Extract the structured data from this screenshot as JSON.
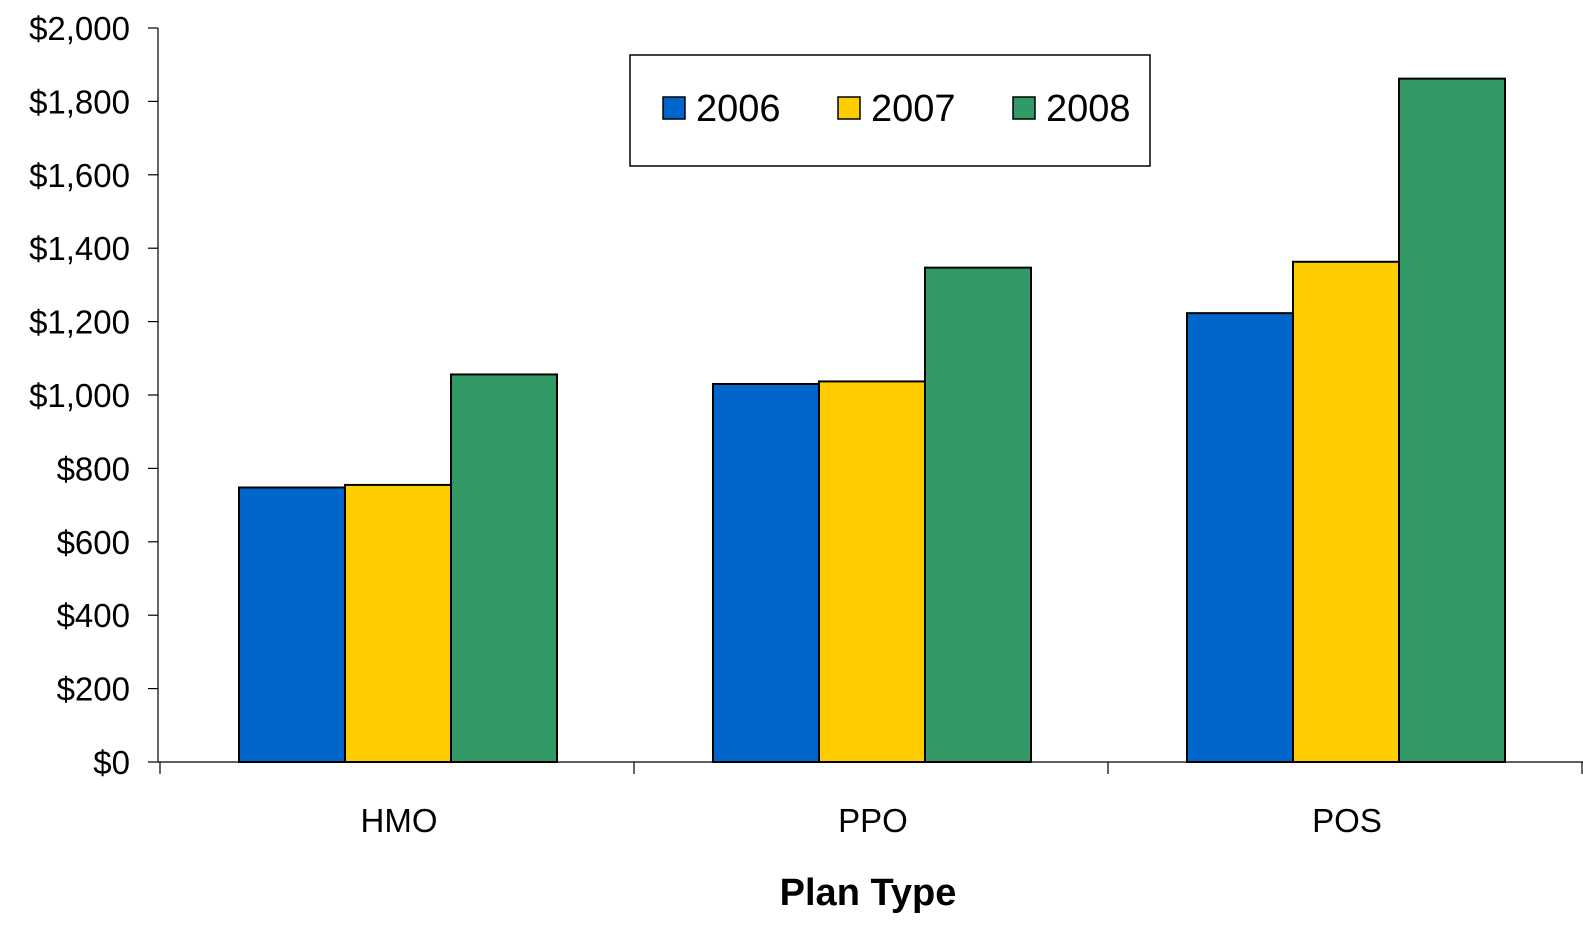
{
  "chart_data": {
    "type": "bar",
    "categories": [
      "HMO",
      "PPO",
      "POS"
    ],
    "series": [
      {
        "name": "2006",
        "color": "#0066CC",
        "values": [
          748,
          1030,
          1223
        ]
      },
      {
        "name": "2007",
        "color": "#FFCC00",
        "values": [
          755,
          1037,
          1363
        ]
      },
      {
        "name": "2008",
        "color": "#339966",
        "values": [
          1056,
          1347,
          1862
        ]
      }
    ],
    "xlabel": "Plan Type",
    "ylabel": "",
    "ylim": [
      0,
      2000
    ],
    "yticks": [
      0,
      200,
      400,
      600,
      800,
      1000,
      1200,
      1400,
      1600,
      1800,
      2000
    ],
    "ytick_labels": [
      "$0",
      "$200",
      "$400",
      "$600",
      "$800",
      "$1,000",
      "$1,200",
      "$1,400",
      "$1,600",
      "$1,800",
      "$2,000"
    ],
    "legend_position": "top-center",
    "grid": false
  }
}
